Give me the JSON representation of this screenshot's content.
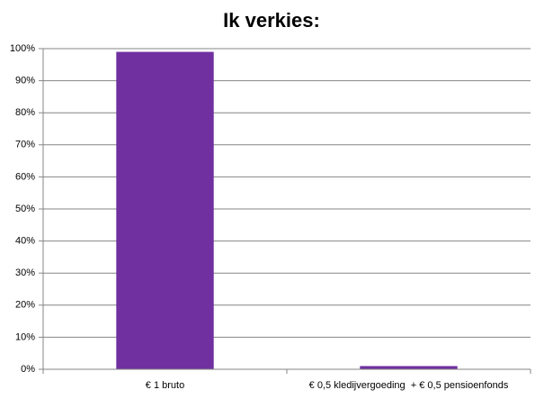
{
  "chart_data": {
    "type": "bar",
    "title": "Ik verkies:",
    "categories": [
      "€ 1 bruto",
      "€ 0,5 kledijvergoeding  + € 0,5 pensioenfonds"
    ],
    "values": [
      99,
      1
    ],
    "color": "#7030a0",
    "ylim": [
      0,
      100
    ],
    "yticks": [
      {
        "value": 0,
        "label": "0%"
      },
      {
        "value": 10,
        "label": "10%"
      },
      {
        "value": 20,
        "label": "20%"
      },
      {
        "value": 30,
        "label": "30%"
      },
      {
        "value": 40,
        "label": "40%"
      },
      {
        "value": 50,
        "label": "50%"
      },
      {
        "value": 60,
        "label": "60%"
      },
      {
        "value": 70,
        "label": "70%"
      },
      {
        "value": 80,
        "label": "80%"
      },
      {
        "value": 90,
        "label": "90%"
      },
      {
        "value": 100,
        "label": "100%"
      }
    ],
    "grid": true
  }
}
